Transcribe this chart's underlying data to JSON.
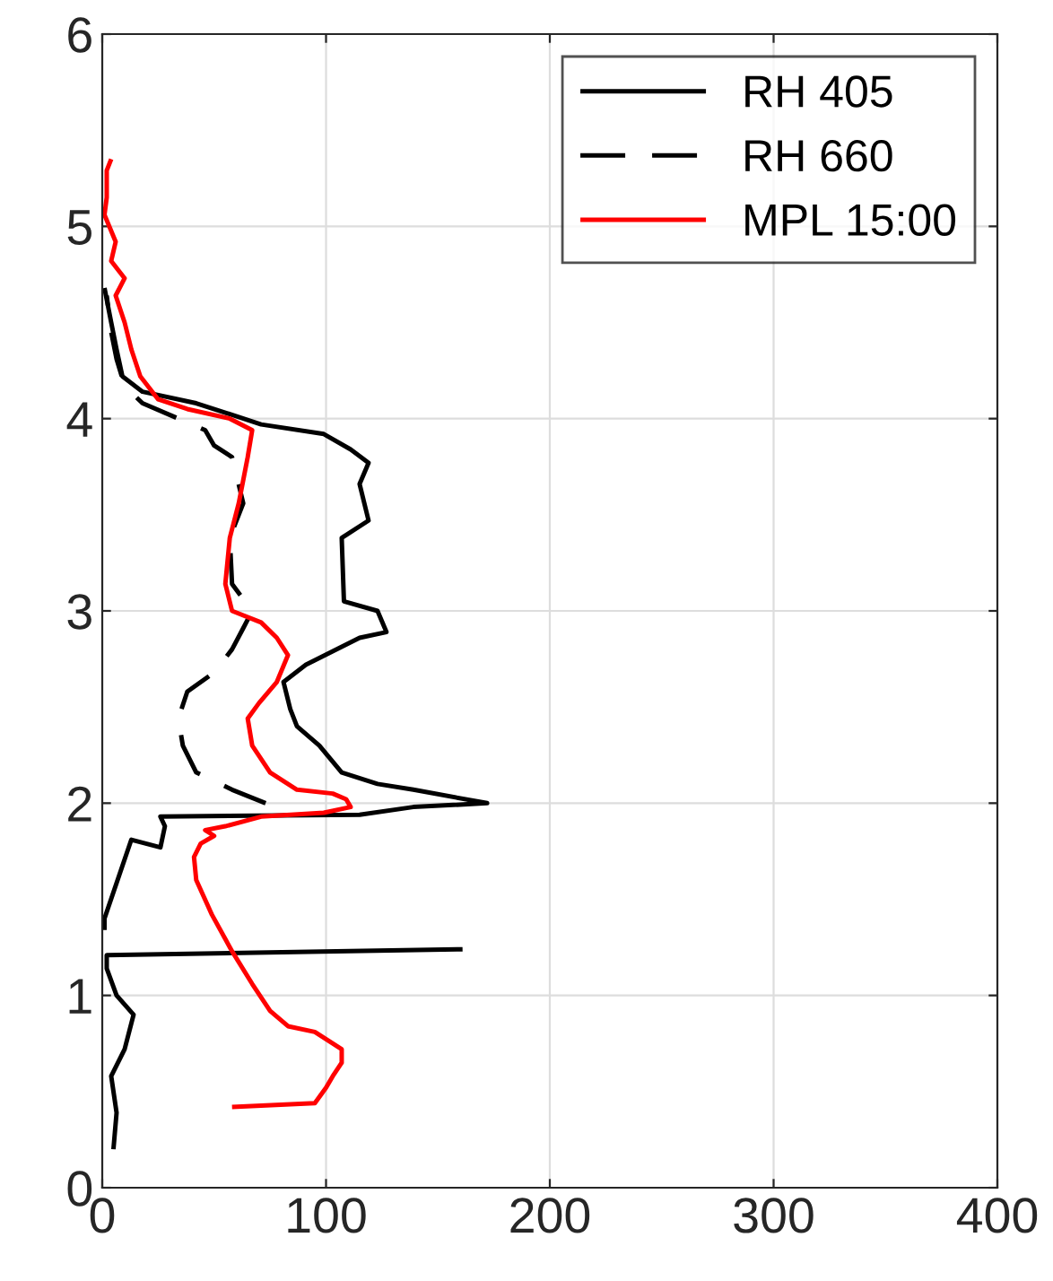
{
  "chart_data": {
    "type": "line",
    "xlim": [
      0,
      400
    ],
    "xticks": [
      0,
      100,
      200,
      300,
      400
    ],
    "ylim": [
      0,
      6
    ],
    "yticks": [
      0,
      1,
      2,
      3,
      4,
      5,
      6
    ],
    "grid": true,
    "legend": "top right",
    "series": [
      {
        "name": "RH 405",
        "color": "#000000",
        "line_style": "solid",
        "x": [
          5,
          6.4,
          4,
          10,
          14,
          6.4,
          2,
          2,
          161,
          null,
          1,
          1,
          13,
          26,
          28,
          26,
          115,
          139,
          172,
          139,
          123,
          107,
          97,
          87,
          84,
          81,
          91,
          103,
          115,
          127,
          123,
          108,
          107,
          119,
          115,
          119,
          111,
          99,
          71,
          42,
          18,
          9,
          6.4,
          4,
          1
        ],
        "values": [
          0.2,
          0.39,
          0.58,
          0.72,
          0.9,
          1.0,
          1.14,
          1.21,
          1.24,
          null,
          1.34,
          1.4,
          1.81,
          1.77,
          1.88,
          1.93,
          1.94,
          1.98,
          2.0,
          2.07,
          2.1,
          2.16,
          2.3,
          2.4,
          2.49,
          2.63,
          2.72,
          2.79,
          2.86,
          2.89,
          3.0,
          3.05,
          3.38,
          3.47,
          3.66,
          3.77,
          3.84,
          3.92,
          3.97,
          4.08,
          4.14,
          4.22,
          4.36,
          4.5,
          4.68
        ]
      },
      {
        "name": "RH 660",
        "color": "#000000",
        "line_style": "dashed",
        "x": [
          73,
          58,
          42,
          36,
          34,
          38,
          50,
          58,
          63,
          67,
          58,
          57,
          63,
          58,
          50,
          46,
          34,
          18,
          10,
          6.4,
          4,
          2
        ],
        "values": [
          2.0,
          2.07,
          2.16,
          2.3,
          2.44,
          2.58,
          2.68,
          2.8,
          2.91,
          3.0,
          3.14,
          3.38,
          3.56,
          3.8,
          3.86,
          3.94,
          4.0,
          4.08,
          4.17,
          4.31,
          4.45,
          4.64
        ]
      },
      {
        "name": "MPL 15:00",
        "color": "#ff0000",
        "line_style": "solid",
        "x": [
          58,
          95,
          100,
          103,
          107,
          107,
          95,
          83,
          75,
          67,
          58,
          49,
          42,
          41,
          44,
          50,
          46,
          55,
          71,
          99,
          111,
          109,
          103,
          87,
          75,
          67,
          65,
          70,
          78,
          83,
          78,
          71,
          58,
          55,
          57,
          61,
          65,
          67,
          57,
          38,
          25,
          17,
          13,
          10,
          6,
          10,
          4,
          6,
          1,
          2,
          2,
          4
        ],
        "values": [
          0.42,
          0.44,
          0.52,
          0.58,
          0.65,
          0.72,
          0.81,
          0.84,
          0.92,
          1.06,
          1.23,
          1.42,
          1.6,
          1.72,
          1.79,
          1.83,
          1.86,
          1.88,
          1.93,
          1.95,
          1.98,
          2.02,
          2.05,
          2.07,
          2.16,
          2.3,
          2.44,
          2.52,
          2.63,
          2.77,
          2.86,
          2.94,
          3.0,
          3.14,
          3.38,
          3.56,
          3.8,
          3.94,
          4.0,
          4.05,
          4.1,
          4.22,
          4.36,
          4.5,
          4.64,
          4.73,
          4.82,
          4.92,
          5.06,
          5.15,
          5.29,
          5.35
        ]
      }
    ]
  }
}
